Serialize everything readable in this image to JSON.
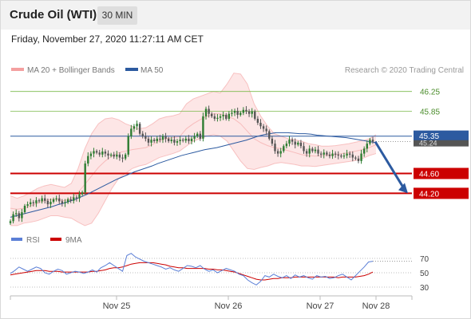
{
  "header": {
    "title": "Crude Oil (WTI)",
    "timeframe": "30 MIN"
  },
  "datetime": "Friday, November 27, 2020 11:27:11 AM CET",
  "legend": {
    "bollinger_label": "MA 20 + Bollinger Bands",
    "ma50_label": "MA 50",
    "credit": "Research © 2020 Trading Central"
  },
  "colors": {
    "up_candle": "#2e7d32",
    "down_candle": "#555555",
    "bollinger": "#f4a0a0",
    "bollinger_fill": "#fde0e0",
    "ma50": "#2c5aa0",
    "rsi": "#5b7fd6",
    "rsi_ma": "#cc0000",
    "resistance": "#7cba4b",
    "support": "#cc0000",
    "pivot": "#2c5aa0",
    "arrow": "#2c5aa0"
  },
  "chart_data": [
    {
      "type": "candlestick",
      "instrument": "Crude Oil (WTI)",
      "interval": "30 MIN",
      "x_ticks": [
        "Nov 25",
        "Nov 26",
        "Nov 27",
        "Nov 28"
      ],
      "ylim": [
        43.95,
        46.55
      ],
      "levels": [
        {
          "value": 46.25,
          "label": "46.25",
          "kind": "resistance"
        },
        {
          "value": 45.85,
          "label": "45.85",
          "kind": "resistance"
        },
        {
          "value": 45.35,
          "label": "45.35",
          "kind": "pivot"
        },
        {
          "value": 44.6,
          "label": "44.60",
          "kind": "support"
        },
        {
          "value": 44.2,
          "label": "44.20",
          "kind": "support"
        }
      ],
      "last_price": 45.24,
      "last_price_label": "45.24",
      "close": [
        43.64,
        43.78,
        43.8,
        43.7,
        43.82,
        43.95,
        43.98,
        44.02,
        44.0,
        44.06,
        44.04,
        44.1,
        44.05,
        43.98,
        44.03,
        44.08,
        44.1,
        44.04,
        44.0,
        44.02,
        44.08,
        44.05,
        44.12,
        44.1,
        44.18,
        44.22,
        44.8,
        44.95,
        45.0,
        45.05,
        45.02,
        44.98,
        45.04,
        45.0,
        44.96,
        44.98,
        44.94,
        44.98,
        44.92,
        44.9,
        44.98,
        45.35,
        45.5,
        45.55,
        45.6,
        45.4,
        45.35,
        45.3,
        45.22,
        45.28,
        45.25,
        45.3,
        45.28,
        45.35,
        45.3,
        45.25,
        45.28,
        45.22,
        45.25,
        45.28,
        45.26,
        45.3,
        45.25,
        45.3,
        45.35,
        45.4,
        45.3,
        45.75,
        45.9,
        45.8,
        45.75,
        45.7,
        45.72,
        45.75,
        45.78,
        45.7,
        45.8,
        45.82,
        45.86,
        45.78,
        45.82,
        45.88,
        45.85,
        45.8,
        45.85,
        45.7,
        45.62,
        45.55,
        45.5,
        45.45,
        45.3,
        45.2,
        45.05,
        45.0,
        45.05,
        45.15,
        45.2,
        45.28,
        45.24,
        45.18,
        45.22,
        45.15,
        45.05,
        45.0,
        45.1,
        45.05,
        45.08,
        45.0,
        44.98,
        45.02,
        44.98,
        44.95,
        45.0,
        44.98,
        44.96,
        44.94,
        44.96,
        45.0,
        44.98,
        44.92,
        44.9,
        44.85,
        45.0,
        45.1,
        45.2,
        45.28,
        45.24
      ],
      "ma50": [
        43.72,
        43.75,
        43.78,
        43.81,
        43.84,
        43.87,
        43.9,
        43.93,
        43.97,
        44.0,
        44.04,
        44.08,
        44.13,
        44.18,
        44.24,
        44.3,
        44.36,
        44.42,
        44.48,
        44.53,
        44.58,
        44.63,
        44.67,
        44.71,
        44.75,
        44.8,
        44.84,
        44.88,
        44.92,
        44.96,
        44.99,
        45.02,
        45.05,
        45.08,
        45.1,
        45.12,
        45.15,
        45.18,
        45.21,
        45.24,
        45.27,
        45.31,
        45.35,
        45.38,
        45.4,
        45.42,
        45.42,
        45.42,
        45.41,
        45.4,
        45.4,
        45.39,
        45.37,
        45.36,
        45.35,
        45.34,
        45.33,
        45.32,
        45.3,
        45.28,
        45.26,
        45.24,
        45.22
      ],
      "bollinger_mid": [
        43.9,
        43.88,
        43.9,
        43.95,
        44.0,
        44.05,
        44.08,
        44.07,
        44.05,
        44.1,
        44.22,
        44.38,
        44.55,
        44.72,
        44.85,
        44.95,
        45.02,
        45.05,
        45.08,
        45.1,
        45.12,
        45.18,
        45.26,
        45.3,
        45.32,
        45.34,
        45.5,
        45.6,
        45.68,
        45.75,
        45.8,
        45.8,
        45.75,
        45.7,
        45.6,
        45.45,
        45.3,
        45.22,
        45.16,
        45.12,
        45.1,
        45.06,
        45.02,
        44.98,
        44.96,
        44.95,
        44.96,
        44.97,
        44.98,
        45.0,
        45.02,
        45.05,
        45.08,
        45.12,
        45.18
      ],
      "bollinger_upper": [
        44.15,
        44.1,
        44.15,
        44.22,
        44.3,
        44.35,
        44.38,
        44.35,
        44.32,
        44.4,
        44.7,
        45.1,
        45.4,
        45.6,
        45.7,
        45.72,
        45.68,
        45.6,
        45.55,
        45.5,
        45.52,
        45.6,
        45.7,
        45.74,
        45.76,
        45.8,
        46.0,
        46.1,
        46.15,
        46.2,
        46.25,
        46.22,
        46.4,
        46.62,
        46.6,
        46.4,
        46.0,
        45.75,
        45.55,
        45.4,
        45.35,
        45.3,
        45.28,
        45.25,
        45.2,
        45.18,
        45.15,
        45.15,
        45.16,
        45.18,
        45.2,
        45.23,
        45.26,
        45.3,
        45.38
      ],
      "bollinger_lower": [
        43.55,
        43.55,
        43.6,
        43.62,
        43.65,
        43.7,
        43.75,
        43.75,
        43.72,
        43.7,
        43.62,
        43.55,
        43.6,
        43.8,
        44.05,
        44.3,
        44.5,
        44.6,
        44.7,
        44.75,
        44.78,
        44.85,
        44.92,
        44.96,
        45.0,
        45.05,
        45.15,
        45.25,
        45.3,
        45.35,
        45.38,
        45.35,
        45.25,
        45.05,
        44.85,
        44.7,
        44.68,
        44.72,
        44.75,
        44.8,
        44.82,
        44.8,
        44.78,
        44.75,
        44.75,
        44.74,
        44.76,
        44.78,
        44.8,
        44.82,
        44.84,
        44.86,
        44.9,
        44.96,
        45.0
      ]
    },
    {
      "type": "line",
      "name": "RSI",
      "ylim": [
        20,
        80
      ],
      "y_ticks": [
        70,
        50,
        30
      ],
      "series": [
        {
          "name": "RSI",
          "values": [
            49,
            53,
            58,
            55,
            52,
            55,
            58,
            56,
            50,
            48,
            52,
            55,
            53,
            48,
            50,
            52,
            51,
            49,
            51,
            54,
            51,
            57,
            60,
            64,
            60,
            56,
            52,
            74,
            77,
            72,
            69,
            66,
            64,
            62,
            60,
            58,
            55,
            57,
            54,
            52,
            56,
            60,
            59,
            57,
            60,
            55,
            52,
            54,
            50,
            53,
            56,
            54,
            52,
            48,
            46,
            40,
            36,
            33,
            38,
            46,
            44,
            48,
            45,
            43,
            46,
            42,
            47,
            44,
            46,
            43,
            41,
            46,
            44,
            45,
            42,
            43,
            46,
            48,
            44,
            40,
            46,
            52,
            58,
            65,
            66
          ]
        },
        {
          "name": "9MA",
          "values": [
            47,
            48,
            49,
            50,
            51,
            52,
            53,
            53,
            53,
            52,
            52,
            52,
            51,
            51,
            51,
            51,
            51,
            51,
            51,
            52,
            52,
            53,
            54,
            56,
            57,
            57,
            58,
            60,
            62,
            63,
            64,
            64,
            64,
            64,
            63,
            62,
            61,
            59,
            58,
            57,
            57,
            56,
            56,
            56,
            56,
            56,
            55,
            55,
            54,
            54,
            53,
            52,
            51,
            49,
            47,
            45,
            43,
            41,
            40,
            40,
            41,
            42,
            42,
            43,
            43,
            43,
            44,
            44,
            44,
            44,
            44,
            44,
            44,
            44,
            44,
            44,
            43,
            44,
            44,
            44,
            44,
            45,
            46,
            48,
            51
          ]
        }
      ]
    }
  ]
}
